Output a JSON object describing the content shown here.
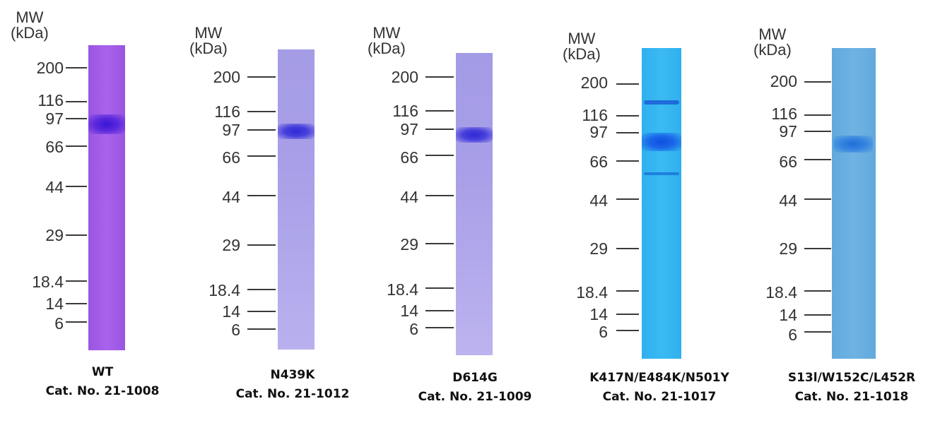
{
  "mw_label": "MW\n(kDa)",
  "marker_labels": [
    "200",
    "116",
    "97",
    "66",
    "44",
    "29",
    "18.4",
    "14",
    "6"
  ],
  "panels": [
    {
      "name": "WT",
      "catalog": "Cat. No. 21-1008",
      "lane_color": "#a35ce8"
    },
    {
      "name": "N439K",
      "catalog": "Cat. No. 21-1012",
      "lane_color": "#a79de8"
    },
    {
      "name": "D614G",
      "catalog": "Cat. No. 21-1009",
      "lane_color": "#a79de8"
    },
    {
      "name": "K417N/E484K/N501Y",
      "catalog": "Cat. No. 21-1017",
      "lane_color": "#35b6ef"
    },
    {
      "name": "S13l/W152C/L452R",
      "catalog": "Cat. No. 21-1018",
      "lane_color": "#6cb0df"
    }
  ]
}
